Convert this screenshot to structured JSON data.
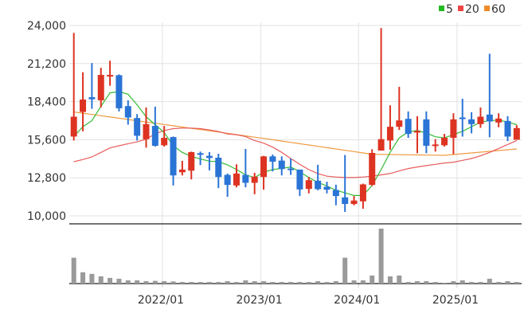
{
  "chart_data": {
    "type": "candlestick",
    "title": "",
    "y_axis": {
      "min": 10000,
      "max": 24000,
      "ticks": [
        "10,000",
        "12,800",
        "15,600",
        "18,400",
        "21,200",
        "24,000"
      ],
      "tick_values": [
        10000,
        12800,
        15600,
        18400,
        21200,
        24000
      ]
    },
    "x_axis": {
      "ticks": [
        "2022/01",
        "2023/01",
        "2024/01",
        "2025/01"
      ],
      "tick_index": [
        9.8,
        20.7,
        31.5,
        42.4
      ]
    },
    "grid": true,
    "legend": {
      "placement": "top-right",
      "entries": [
        {
          "label": "5",
          "color": "#22bb22"
        },
        {
          "label": "20",
          "color": "#ee4444"
        },
        {
          "label": "60",
          "color": "#f08c28"
        }
      ]
    },
    "colors": {
      "up": "#dd3322",
      "down": "#2a74d6",
      "volume": "#9a9a9a",
      "ma5": "#33bb33",
      "ma20": "#e85c5c",
      "ma60": "#f09a40"
    },
    "candles": [
      [
        15833,
        23456,
        15542,
        17292
      ],
      [
        17642,
        20558,
        16222,
        18556
      ],
      [
        18731,
        21239,
        17875,
        18575
      ],
      [
        18497,
        20889,
        17972,
        20364
      ],
      [
        20325,
        21414,
        19567,
        20364
      ],
      [
        20344,
        20403,
        17681,
        17914
      ],
      [
        18069,
        18497,
        16708,
        17233
      ],
      [
        17194,
        17486,
        15542,
        15892
      ],
      [
        15639,
        17972,
        15017,
        16747
      ],
      [
        16611,
        18031,
        15095,
        15153
      ],
      [
        15192,
        16611,
        15095,
        15736
      ],
      [
        15794,
        15833,
        12236,
        12975
      ],
      [
        13208,
        14044,
        12975,
        13403
      ],
      [
        13325,
        14725,
        12683,
        14686
      ],
      [
        14608,
        14725,
        13733,
        14531
      ],
      [
        14414,
        14686,
        13344,
        14258
      ],
      [
        14278,
        14569,
        12042,
        12858
      ],
      [
        13014,
        13111,
        11400,
        12275
      ],
      [
        12236,
        13792,
        12100,
        13111
      ],
      [
        13014,
        14919,
        12100,
        12431
      ],
      [
        12431,
        13169,
        11594,
        12878
      ],
      [
        12858,
        14414,
        11925,
        14375
      ],
      [
        14375,
        14511,
        13267,
        13986
      ],
      [
        14064,
        14375,
        12975,
        13442
      ],
      [
        13481,
        14219,
        13014,
        13403
      ],
      [
        13403,
        13403,
        11458,
        11944
      ],
      [
        11983,
        12858,
        11653,
        12625
      ],
      [
        12586,
        13753,
        11886,
        11964
      ],
      [
        12139,
        12508,
        11653,
        11925
      ],
      [
        11906,
        12294,
        10778,
        11458
      ],
      [
        11361,
        14472,
        10292,
        10875
      ],
      [
        10875,
        11458,
        10778,
        11128
      ],
      [
        11069,
        12372,
        10525,
        12314
      ],
      [
        12275,
        14900,
        12197,
        14628
      ],
      [
        14803,
        23806,
        14803,
        15639
      ],
      [
        15542,
        18128,
        14861,
        16553
      ],
      [
        16553,
        19489,
        16319,
        17019
      ],
      [
        17136,
        17681,
        15736,
        16028
      ],
      [
        16164,
        17331,
        14608,
        16242
      ],
      [
        17097,
        17681,
        14608,
        15153
      ],
      [
        15153,
        15639,
        14725,
        15250
      ],
      [
        15192,
        16028,
        15094,
        15736
      ],
      [
        15736,
        17544,
        14531,
        17097
      ],
      [
        17233,
        18614,
        15833,
        17136
      ],
      [
        17097,
        17622,
        16067,
        16747
      ],
      [
        16747,
        17972,
        16475,
        17292
      ],
      [
        17447,
        21919,
        15775,
        16942
      ],
      [
        16864,
        17544,
        16514,
        17156
      ],
      [
        16981,
        17331,
        15503,
        15833
      ],
      [
        15600,
        16669,
        15600,
        16456
      ]
    ],
    "candle_fields": [
      "open",
      "high",
      "low",
      "close"
    ],
    "ma5": [
      15833,
      16553,
      17000,
      18069,
      19042,
      19139,
      18944,
      18167,
      17292,
      16708,
      16125,
      15153,
      14667,
      14375,
      14181,
      14025,
      13986,
      13753,
      13403,
      13014,
      12819,
      13208,
      13403,
      13500,
      13597,
      13247,
      12819,
      12469,
      12197,
      11886,
      11692,
      11497,
      11497,
      12236,
      13403,
      14667,
      15736,
      16164,
      16281,
      16086,
      15814,
      15736,
      15969,
      16222,
      16553,
      16903,
      17000,
      17039,
      16903,
      16708
    ],
    "ma20": [
      13986,
      14142,
      14336,
      14667,
      14997,
      15153,
      15308,
      15444,
      15639,
      16028,
      16281,
      16417,
      16456,
      16456,
      16417,
      16319,
      16203,
      16028,
      15969,
      15833,
      15542,
      15347,
      15056,
      14667,
      14219,
      13792,
      13403,
      13111,
      12917,
      12858,
      12819,
      12819,
      12858,
      12917,
      13014,
      13111,
      13306,
      13481,
      13597,
      13694,
      13792,
      13889,
      13947,
      14083,
      14219,
      14414,
      14667,
      14958,
      15250,
      15542
    ],
    "ma60": [
      17642,
      17550,
      17457,
      17365,
      17272,
      17180,
      17087,
      16995,
      16902,
      16810,
      16717,
      16625,
      16532,
      16440,
      16347,
      16254,
      16162,
      16069,
      15976,
      15884,
      15790,
      15697,
      15600,
      15503,
      15406,
      15308,
      15211,
      15114,
      15017,
      14920,
      14823,
      14725,
      14628,
      14531,
      14521,
      14511,
      14501,
      14491,
      14482,
      14472,
      14462,
      14453,
      14511,
      14569,
      14627,
      14685,
      14744,
      14802,
      14860,
      14919
    ],
    "volume_relative": [
      96,
      42,
      36,
      27,
      21,
      18,
      12,
      12,
      9,
      10,
      9,
      8,
      6,
      6,
      6,
      6,
      6,
      9,
      6,
      12,
      9,
      9,
      6,
      6,
      6,
      6,
      6,
      9,
      6,
      9,
      96,
      12,
      12,
      30,
      204,
      27,
      30,
      6,
      9,
      9,
      6,
      3,
      9,
      12,
      6,
      6,
      18,
      6,
      9,
      6
    ]
  }
}
